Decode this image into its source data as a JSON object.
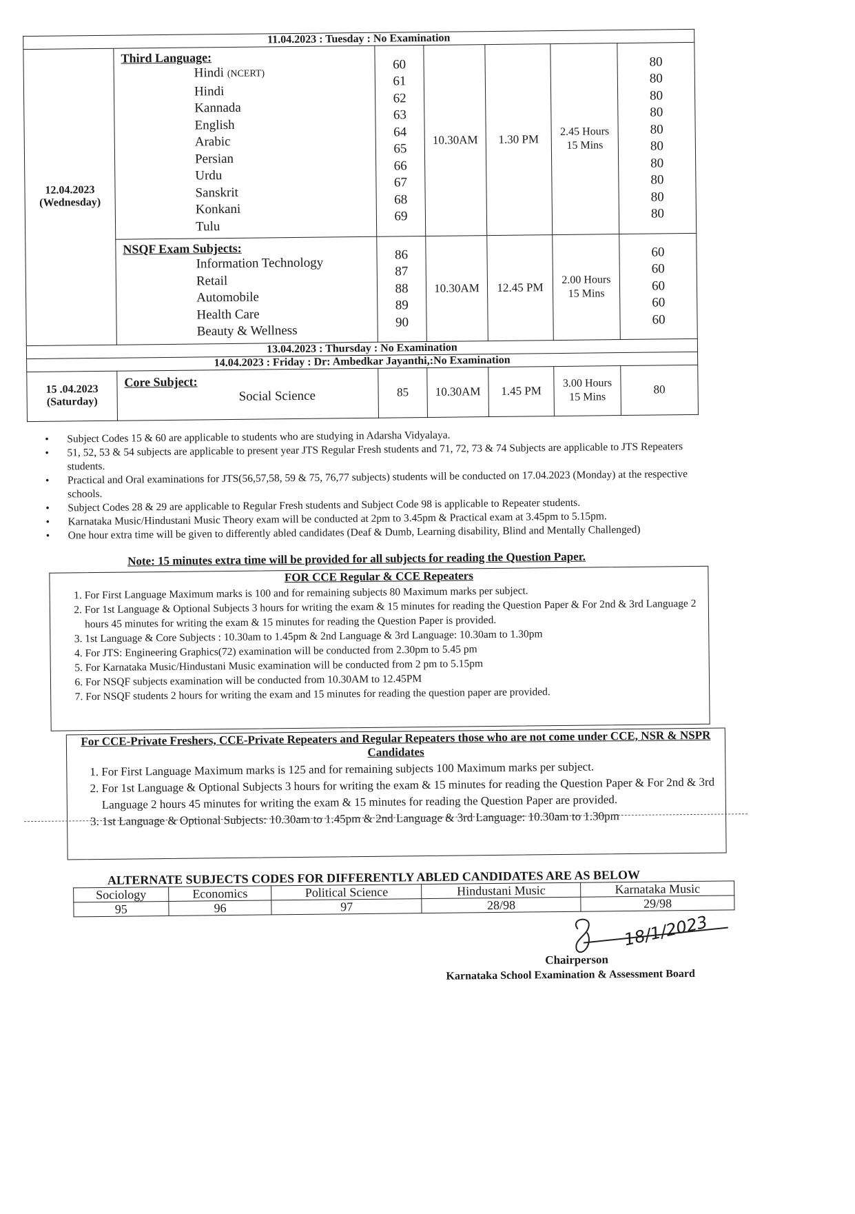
{
  "schedule": {
    "no_exam_1": "11.04.2023  :  Tuesday   :  No Examination",
    "day_12": {
      "date": "12.04.2023",
      "day": "(Wednesday)",
      "groups": [
        {
          "heading": "Third Language:",
          "start": "10.30AM",
          "end": "1.30 PM",
          "duration": "2.45 Hours 15 Mins",
          "subjects": [
            {
              "name": "Hindi",
              "note": "(NCERT)",
              "code": "60",
              "marks": "80"
            },
            {
              "name": "Hindi",
              "code": "61",
              "marks": "80"
            },
            {
              "name": "Kannada",
              "code": "62",
              "marks": "80"
            },
            {
              "name": "English",
              "code": "63",
              "marks": "80"
            },
            {
              "name": "Arabic",
              "code": "64",
              "marks": "80"
            },
            {
              "name": "Persian",
              "code": "65",
              "marks": "80"
            },
            {
              "name": "Urdu",
              "code": "66",
              "marks": "80"
            },
            {
              "name": "Sanskrit",
              "code": "67",
              "marks": "80"
            },
            {
              "name": "Konkani",
              "code": "68",
              "marks": "80"
            },
            {
              "name": "Tulu",
              "code": "69",
              "marks": "80"
            }
          ]
        },
        {
          "heading": "NSQF Exam Subjects:",
          "start": "10.30AM",
          "end": "12.45 PM",
          "duration": "2.00 Hours 15 Mins",
          "subjects": [
            {
              "name": "Information Technology",
              "code": "86",
              "marks": "60"
            },
            {
              "name": "Retail",
              "code": "87",
              "marks": "60"
            },
            {
              "name": "Automobile",
              "code": "88",
              "marks": "60"
            },
            {
              "name": "Health Care",
              "code": "89",
              "marks": "60"
            },
            {
              "name": "Beauty & Wellness",
              "code": "90",
              "marks": "60"
            }
          ]
        }
      ]
    },
    "no_exam_2": "13.04.2023  :  Thursday   :  No Examination",
    "no_exam_3": "14.04.2023  :  Friday   :  Dr: Ambedkar Jayanthi,:No Examination",
    "day_15": {
      "date": "15 .04.2023",
      "day": "(Saturday)",
      "heading": "Core Subject:",
      "subject": "Social Science",
      "code": "85",
      "start": "10.30AM",
      "end": "1.45 PM",
      "duration": "3.00 Hours 15 Mins",
      "marks": "80"
    }
  },
  "bullets": [
    "Subject Codes 15 & 60 are applicable to students who are studying in Adarsha Vidyalaya.",
    "51, 52, 53 & 54 subjects are applicable to present year JTS Regular Fresh students and 71, 72, 73 & 74 Subjects are applicable to JTS Repeaters students.",
    "Practical and Oral examinations for JTS(56,57,58, 59 & 75, 76,77 subjects) students will be conducted on 17.04.2023 (Monday) at the respective schools.",
    "Subject Codes 28 & 29 are applicable to Regular Fresh students and Subject Code 98 is applicable to Repeater students.",
    "Karnataka Music/Hindustani Music Theory exam will be conducted at 2pm to 3.45pm & Practical exam at 3.45pm to 5.15pm.",
    "One hour extra time will be given to differently abled candidates (Deaf & Dumb, Learning disability, Blind and Mentally Challenged)"
  ],
  "note": "Note: 15 minutes extra time will be provided for all subjects for reading the Question Paper.",
  "cce_box": {
    "title": "FOR CCE Regular & CCE Repeaters",
    "items": [
      "For First Language Maximum marks is 100 and for remaining subjects 80 Maximum marks per subject.",
      "For 1st Language & Optional Subjects 3 hours for writing the exam & 15 minutes for reading the Question Paper & For 2nd & 3rd Language 2 hours 45 minutes for writing the exam & 15 minutes for reading the Question Paper is provided.",
      "1st Language & Core Subjects : 10.30am to 1.45pm & 2nd Language & 3rd Language: 10.30am to 1.30pm",
      "For JTS: Engineering Graphics(72) examination will be conducted from  2.30pm to 5.45 pm",
      "For Karnataka Music/Hindustani Music examination will be conducted from  2 pm to 5.15pm",
      "For NSQF subjects examination will be conducted from 10.30AM to 12.45PM",
      "For NSQF students 2 hours for writing the exam and 15 minutes for reading the question paper are provided."
    ]
  },
  "private_box": {
    "title": "For CCE-Private Freshers, CCE-Private Repeaters and Regular Repeaters those who are not come under CCE, NSR & NSPR Candidates",
    "items": [
      "For First Language Maximum marks is 125 and for remaining subjects 100 Maximum marks per subject.",
      "For 1st Language & Optional Subjects 3 hours for writing the exam & 15 minutes for reading the Question Paper & For 2nd & 3rd Language 2 hours 45 minutes for writing the exam & 15 minutes for reading the Question Paper are provided.",
      "1st Language & Optional Subjects: 10.30am to 1.45pm & 2nd Language & 3rd Language: 10.30am to 1.30pm"
    ]
  },
  "alternate": {
    "title": "ALTERNATE SUBJECTS CODES FOR DIFFERENTLY ABLED CANDIDATES ARE AS BELOW",
    "headers": [
      "Sociology",
      "Economics",
      "Political Science",
      "Hindustani Music",
      "Karnataka Music"
    ],
    "codes": [
      "95",
      "96",
      "97",
      "28/98",
      "29/98"
    ]
  },
  "signature": {
    "handwritten_date": "18/1/2023",
    "title": "Chairperson",
    "organization": "Karnataka School Examination & Assessment Board"
  }
}
